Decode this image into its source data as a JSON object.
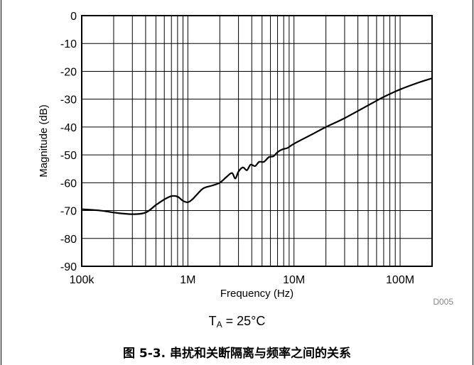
{
  "chart_data": {
    "type": "line",
    "xlabel": "Frequency (Hz)",
    "ylabel": "Magnitude (dB)",
    "x_scale": "log",
    "xlim": [
      100000,
      200000000
    ],
    "ylim": [
      -90,
      0
    ],
    "x_ticks": [
      {
        "value": 100000,
        "label": "100k"
      },
      {
        "value": 1000000,
        "label": "1M"
      },
      {
        "value": 10000000,
        "label": "10M"
      },
      {
        "value": 100000000,
        "label": "100M"
      }
    ],
    "y_ticks": [
      0,
      -10,
      -20,
      -30,
      -40,
      -50,
      -60,
      -70,
      -80,
      -90
    ],
    "grid": true,
    "code": "D005",
    "series": [
      {
        "color": "#000000",
        "x": [
          100000,
          150000,
          200000,
          300000,
          400000,
          500000,
          600000,
          700000,
          800000,
          900000,
          1000000,
          1100000,
          1200000,
          1400000,
          1700000,
          2000000,
          2300000,
          2600000,
          2800000,
          3000000,
          3300000,
          3600000,
          3900000,
          4300000,
          4700000,
          5200000,
          5800000,
          6400000,
          7000000,
          7800000,
          8700000,
          10000000,
          15000000,
          20000000,
          30000000,
          50000000,
          70000000,
          100000000,
          150000000,
          200000000
        ],
        "y": [
          -69.5,
          -70.0,
          -70.7,
          -71.3,
          -70.7,
          -68.0,
          -66.0,
          -64.8,
          -65.0,
          -66.5,
          -67.0,
          -66.0,
          -64.5,
          -62.0,
          -61.0,
          -60.0,
          -58.0,
          -56.5,
          -58.5,
          -56.0,
          -54.5,
          -55.5,
          -53.5,
          -54.0,
          -52.5,
          -52.5,
          -50.8,
          -50.5,
          -49.0,
          -48.0,
          -47.5,
          -46.0,
          -42.5,
          -40.0,
          -36.8,
          -32.2,
          -29.2,
          -26.5,
          -24.0,
          -22.5
        ]
      }
    ]
  },
  "condition": {
    "prefix": "T",
    "subscript": "A",
    "suffix": " = 25°C"
  },
  "caption": "图 5-3. 串扰和关断隔离与频率之间的关系"
}
